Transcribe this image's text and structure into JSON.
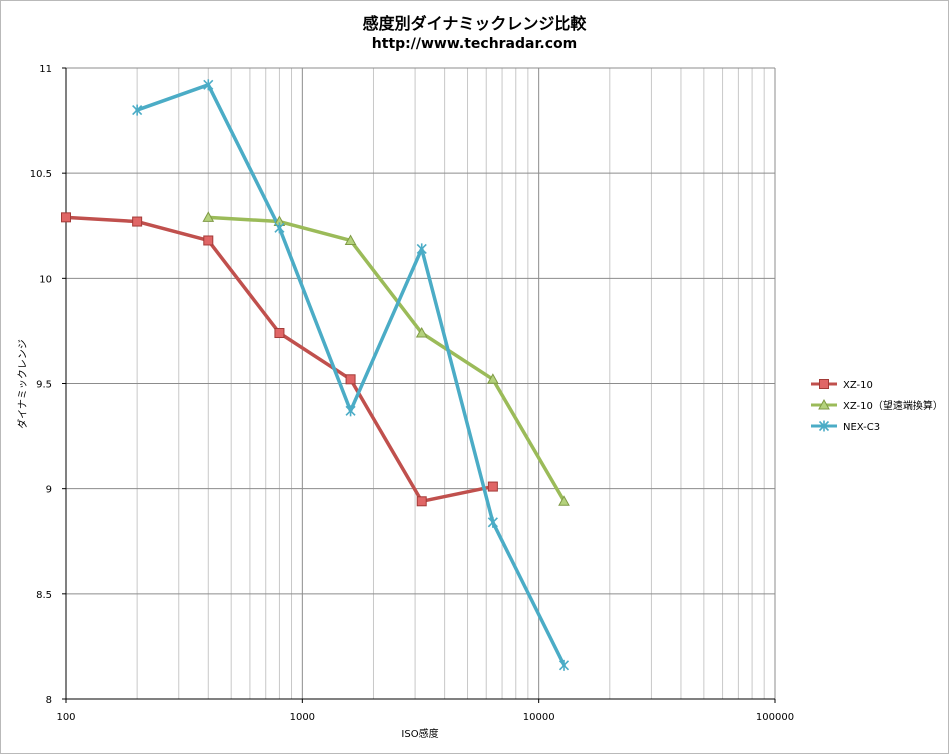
{
  "chart_data": {
    "type": "line",
    "title": "感度別ダイナミックレンジ比較",
    "subtitle": "http://www.techradar.com",
    "xlabel": "ISO感度",
    "ylabel": "ダイナミックレンジ",
    "xscale": "log",
    "xlim": [
      100,
      100000
    ],
    "ylim": [
      8,
      11
    ],
    "x_ticks": [
      100,
      1000,
      10000,
      100000
    ],
    "x_tick_labels": [
      "100",
      "1000",
      "10000",
      "100000"
    ],
    "y_ticks": [
      8,
      8.5,
      9,
      9.5,
      10,
      10.5,
      11
    ],
    "y_tick_labels": [
      "8",
      "8.5",
      "9",
      "9.5",
      "10",
      "10.5",
      "11"
    ],
    "grid": true,
    "legend_position": "right",
    "series": [
      {
        "name": "XZ-10",
        "color": "#c0504d",
        "marker": "square",
        "x": [
          100,
          200,
          400,
          800,
          1600,
          3200,
          6400
        ],
        "y": [
          10.29,
          10.27,
          10.18,
          9.74,
          9.52,
          8.94,
          9.01
        ]
      },
      {
        "name": "XZ-10（望遠端換算）",
        "color": "#9bbb59",
        "marker": "triangle",
        "x": [
          400,
          800,
          1600,
          3200,
          6400,
          12800
        ],
        "y": [
          10.29,
          10.27,
          10.18,
          9.74,
          9.52,
          8.94
        ]
      },
      {
        "name": "NEX-C3",
        "color": "#4bacc6",
        "marker": "star",
        "x": [
          200,
          400,
          800,
          1600,
          3200,
          6400,
          12800
        ],
        "y": [
          10.8,
          10.92,
          10.24,
          9.37,
          10.14,
          8.84,
          8.16
        ]
      }
    ]
  }
}
